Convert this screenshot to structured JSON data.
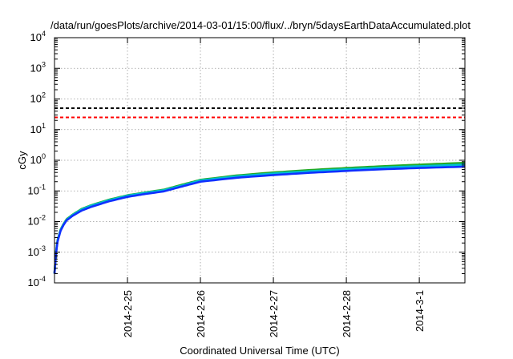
{
  "chart_data": {
    "type": "line",
    "title": "/data/run/goesPlots/archive/2014-03-01/15:00/flux/../bryn/5daysEarthDataAccumulated.plot",
    "xlabel": "Coordinated Universal Time (UTC)",
    "ylabel": "cGy",
    "y_scale": "log",
    "ylim": [
      0.0001,
      10000
    ],
    "xlim": [
      "2014-02-24T00:00",
      "2014-03-01T15:00"
    ],
    "grid": true,
    "y_ticks": [
      {
        "base": "10",
        "exp": "-4",
        "value": 0.0001
      },
      {
        "base": "10",
        "exp": "-3",
        "value": 0.001
      },
      {
        "base": "10",
        "exp": "-2",
        "value": 0.01
      },
      {
        "base": "10",
        "exp": "-1",
        "value": 0.1
      },
      {
        "base": "10",
        "exp": "0",
        "value": 1
      },
      {
        "base": "10",
        "exp": "1",
        "value": 10
      },
      {
        "base": "10",
        "exp": "2",
        "value": 100
      },
      {
        "base": "10",
        "exp": "3",
        "value": 1000
      },
      {
        "base": "10",
        "exp": "4",
        "value": 10000
      }
    ],
    "x_ticks": [
      {
        "label": "2014-2-25",
        "value": "2014-02-25T00:00"
      },
      {
        "label": "2014-2-26",
        "value": "2014-02-26T00:00"
      },
      {
        "label": "2014-2-27",
        "value": "2014-02-27T00:00"
      },
      {
        "label": "2014-2-28",
        "value": "2014-02-28T00:00"
      },
      {
        "label": "2014-3-1",
        "value": "2014-03-01T00:00"
      }
    ],
    "reference_lines": [
      {
        "value": 50,
        "color": "#000000",
        "style": "dashed"
      },
      {
        "value": 25,
        "color": "#ff0000",
        "style": "dashed"
      }
    ],
    "x": [
      "2014-02-24T00:00",
      "2014-02-24T00:30",
      "2014-02-24T01:00",
      "2014-02-24T02:00",
      "2014-02-24T03:00",
      "2014-02-24T04:00",
      "2014-02-24T06:00",
      "2014-02-24T09:00",
      "2014-02-24T12:00",
      "2014-02-24T18:00",
      "2014-02-25T00:00",
      "2014-02-25T06:00",
      "2014-02-25T12:00",
      "2014-02-25T18:00",
      "2014-02-26T00:00",
      "2014-02-26T12:00",
      "2014-02-27T00:00",
      "2014-02-27T12:00",
      "2014-02-28T00:00",
      "2014-02-28T12:00",
      "2014-03-01T00:00",
      "2014-03-01T15:00"
    ],
    "series": [
      {
        "color": "#22aa22",
        "values": [
          0.0002,
          0.001,
          0.0025,
          0.0055,
          0.0085,
          0.012,
          0.017,
          0.026,
          0.034,
          0.052,
          0.072,
          0.09,
          0.11,
          0.16,
          0.23,
          0.32,
          0.4,
          0.48,
          0.56,
          0.64,
          0.72,
          0.82
        ]
      },
      {
        "color": "#00bcd4",
        "values": [
          0.0002,
          0.00095,
          0.0024,
          0.0053,
          0.0082,
          0.0115,
          0.0165,
          0.025,
          0.033,
          0.05,
          0.07,
          0.087,
          0.106,
          0.15,
          0.22,
          0.3,
          0.37,
          0.44,
          0.51,
          0.58,
          0.64,
          0.72
        ]
      },
      {
        "color": "#1030ff",
        "values": [
          0.0002,
          0.0009,
          0.0022,
          0.005,
          0.0078,
          0.011,
          0.0155,
          0.023,
          0.03,
          0.046,
          0.064,
          0.08,
          0.097,
          0.14,
          0.2,
          0.27,
          0.33,
          0.39,
          0.45,
          0.51,
          0.56,
          0.62
        ]
      }
    ]
  }
}
